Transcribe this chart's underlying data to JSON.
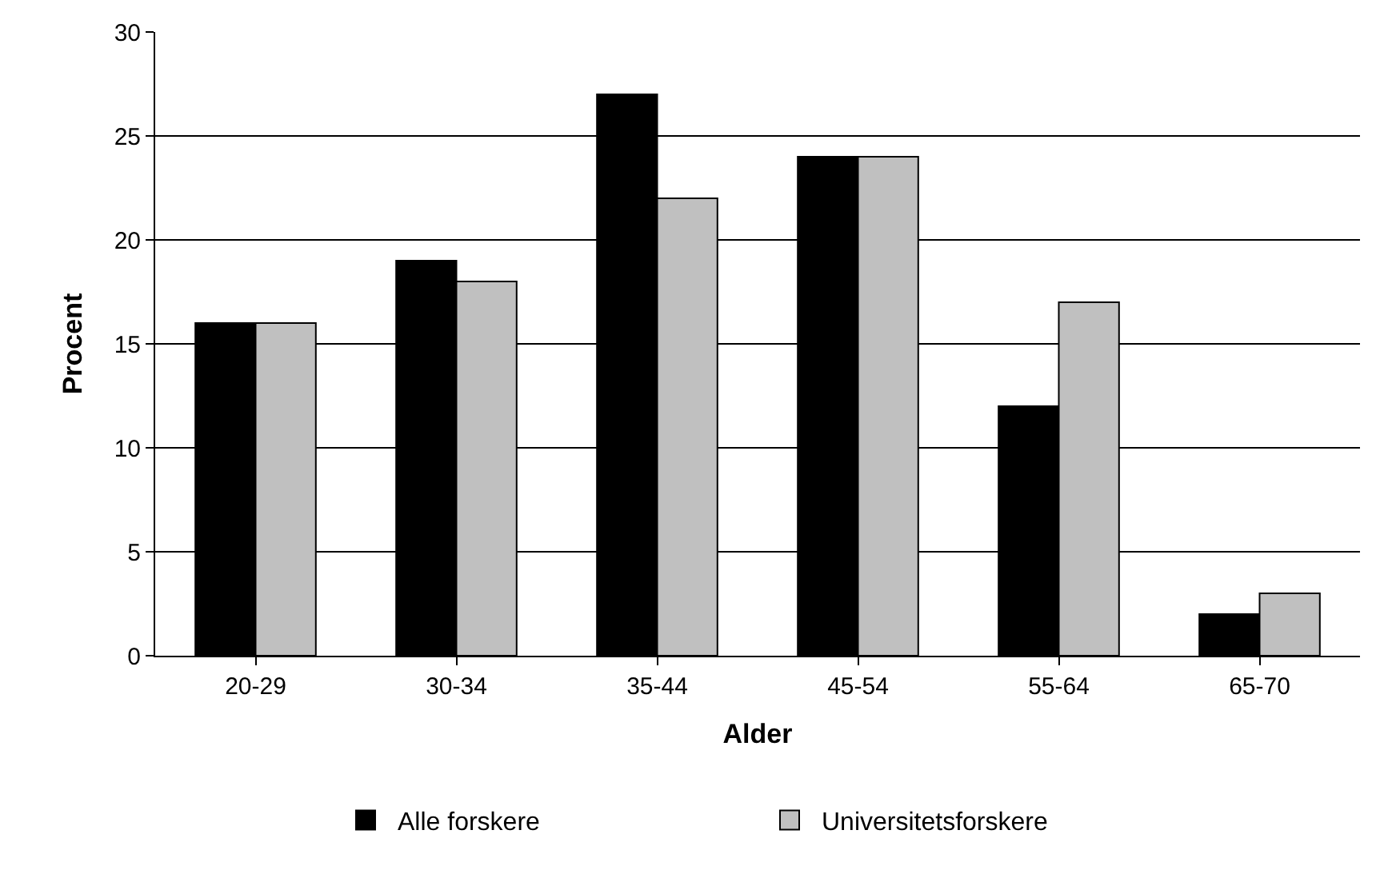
{
  "chart_data": {
    "type": "bar",
    "xlabel": "Alder",
    "ylabel": "Procent",
    "categories": [
      "20-29",
      "30-34",
      "35-44",
      "45-54",
      "55-64",
      "65-70"
    ],
    "series": [
      {
        "name": "Alle forskere",
        "color": "#000000",
        "values": [
          16,
          19,
          27,
          24,
          12,
          2
        ]
      },
      {
        "name": "Universitetsforskere",
        "color": "#c0c0c0",
        "values": [
          16,
          18,
          22,
          24,
          17,
          3
        ]
      }
    ],
    "ylim": [
      0,
      30
    ],
    "yticks": [
      0,
      5,
      10,
      15,
      20,
      25,
      30
    ],
    "grid": "y",
    "legend": "bottom"
  }
}
